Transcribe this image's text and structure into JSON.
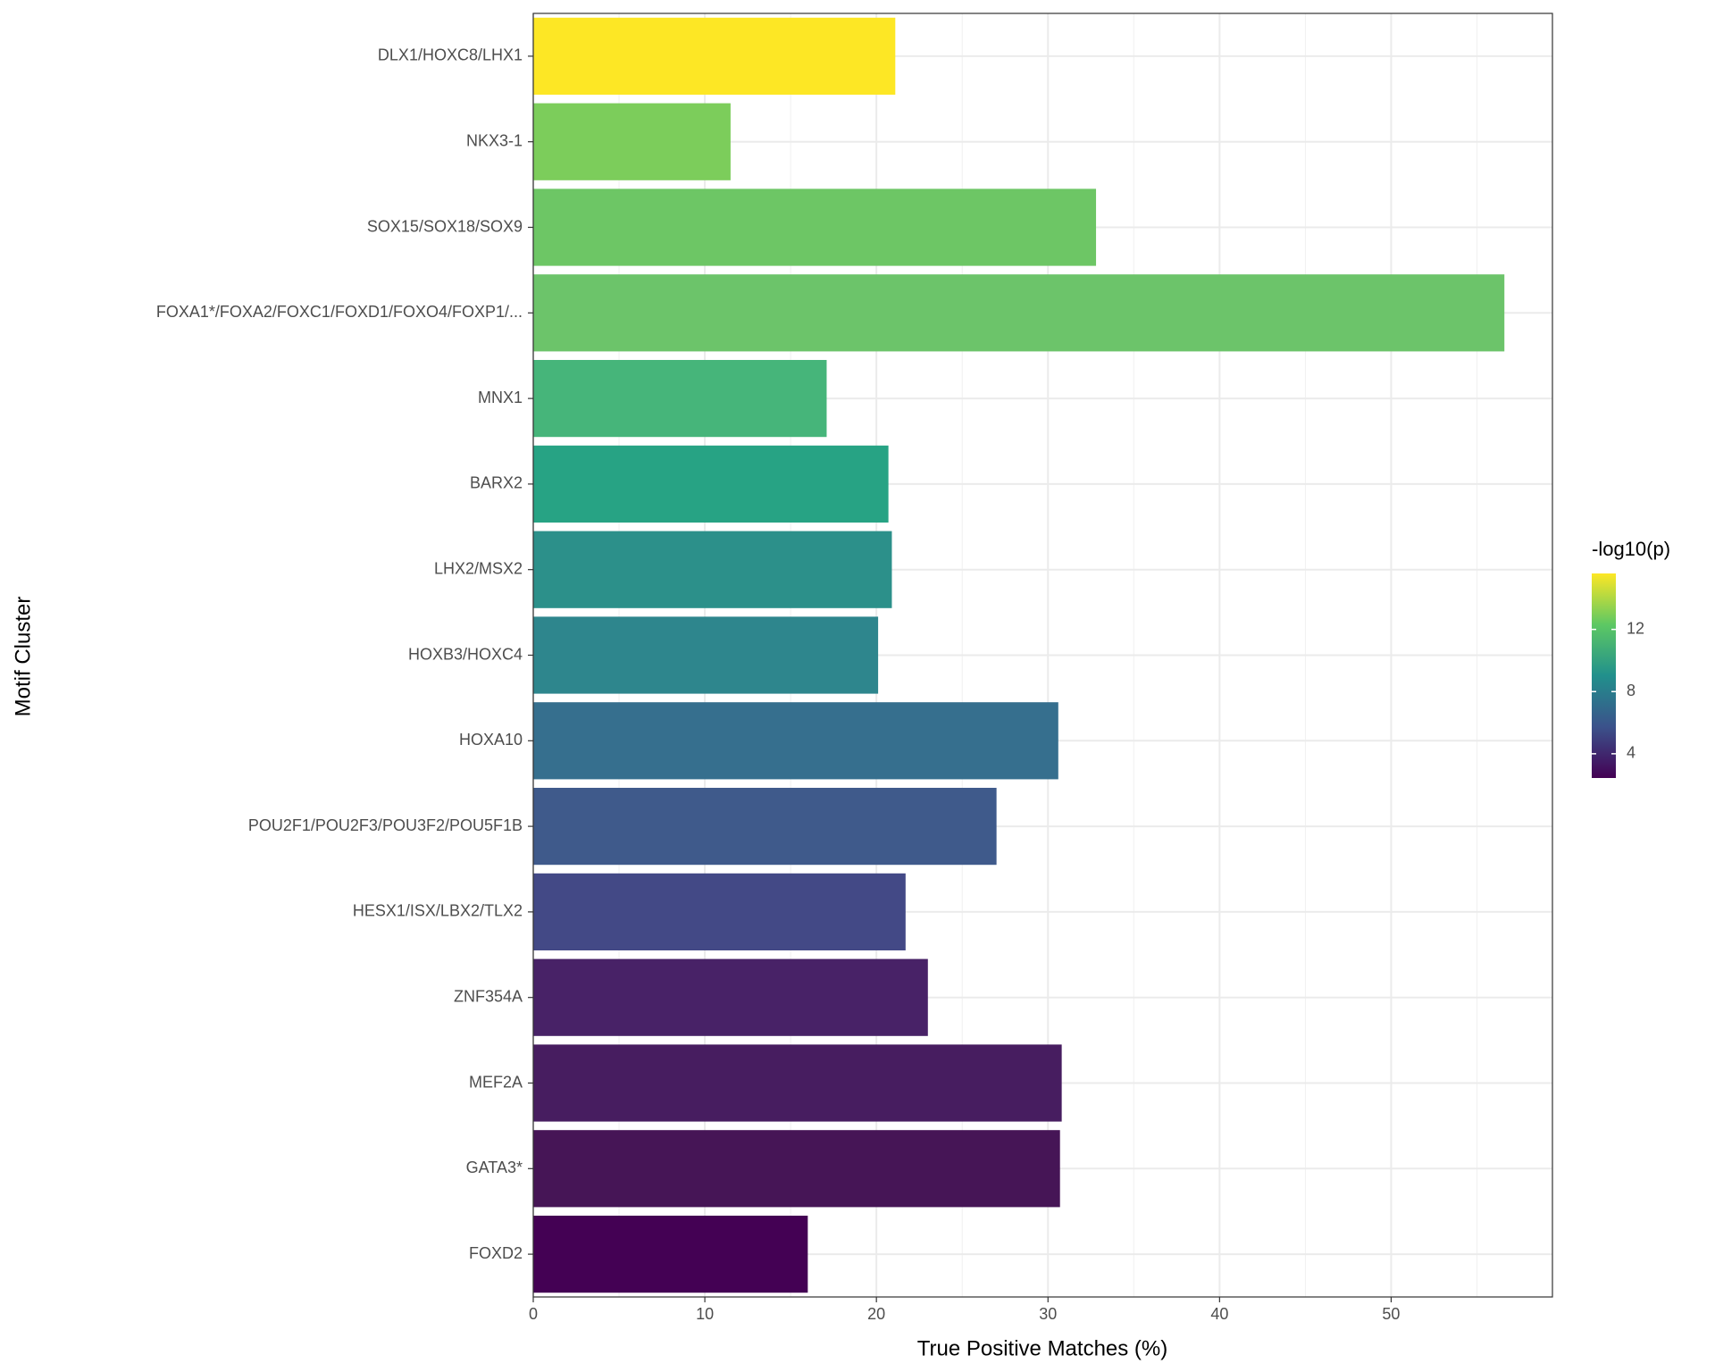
{
  "chart_data": {
    "type": "bar",
    "orientation": "horizontal",
    "x_label": "True Positive Matches (%)",
    "y_label": "Motif Cluster",
    "categories": [
      "DLX1/HOXC8/LHX1",
      "NKX3-1",
      "SOX15/SOX18/SOX9",
      "FOXA1*/FOXA2/FOXC1/FOXD1/FOXO4/FOXP1/...",
      "MNX1",
      "BARX2",
      "LHX2/MSX2",
      "HOXB3/HOXC4",
      "HOXA10",
      "POU2F1/POU2F3/POU3F2/POU5F1B",
      "HESX1/ISX/LBX2/TLX2",
      "ZNF354A",
      "MEF2A",
      "GATA3*",
      "FOXD2"
    ],
    "values": [
      21.1,
      11.5,
      32.8,
      56.6,
      17.1,
      20.7,
      20.9,
      20.1,
      30.6,
      27.0,
      21.7,
      23.0,
      30.8,
      30.7,
      16.0
    ],
    "colors": [
      "#fde725",
      "#7ccd5b",
      "#6dc665",
      "#6cc46a",
      "#46b57a",
      "#27a384",
      "#2c908a",
      "#2e868d",
      "#366f8e",
      "#3f5a8b",
      "#434986",
      "#482267",
      "#471d60",
      "#461556",
      "#440154"
    ],
    "xlim": [
      0,
      59.4
    ],
    "xticks": [
      0,
      10,
      20,
      30,
      40,
      50
    ],
    "grid": true,
    "colorbar": {
      "title": "-log10(p)",
      "lim": [
        2.44,
        15.6
      ],
      "ticks": [
        4,
        8,
        12
      ]
    }
  }
}
